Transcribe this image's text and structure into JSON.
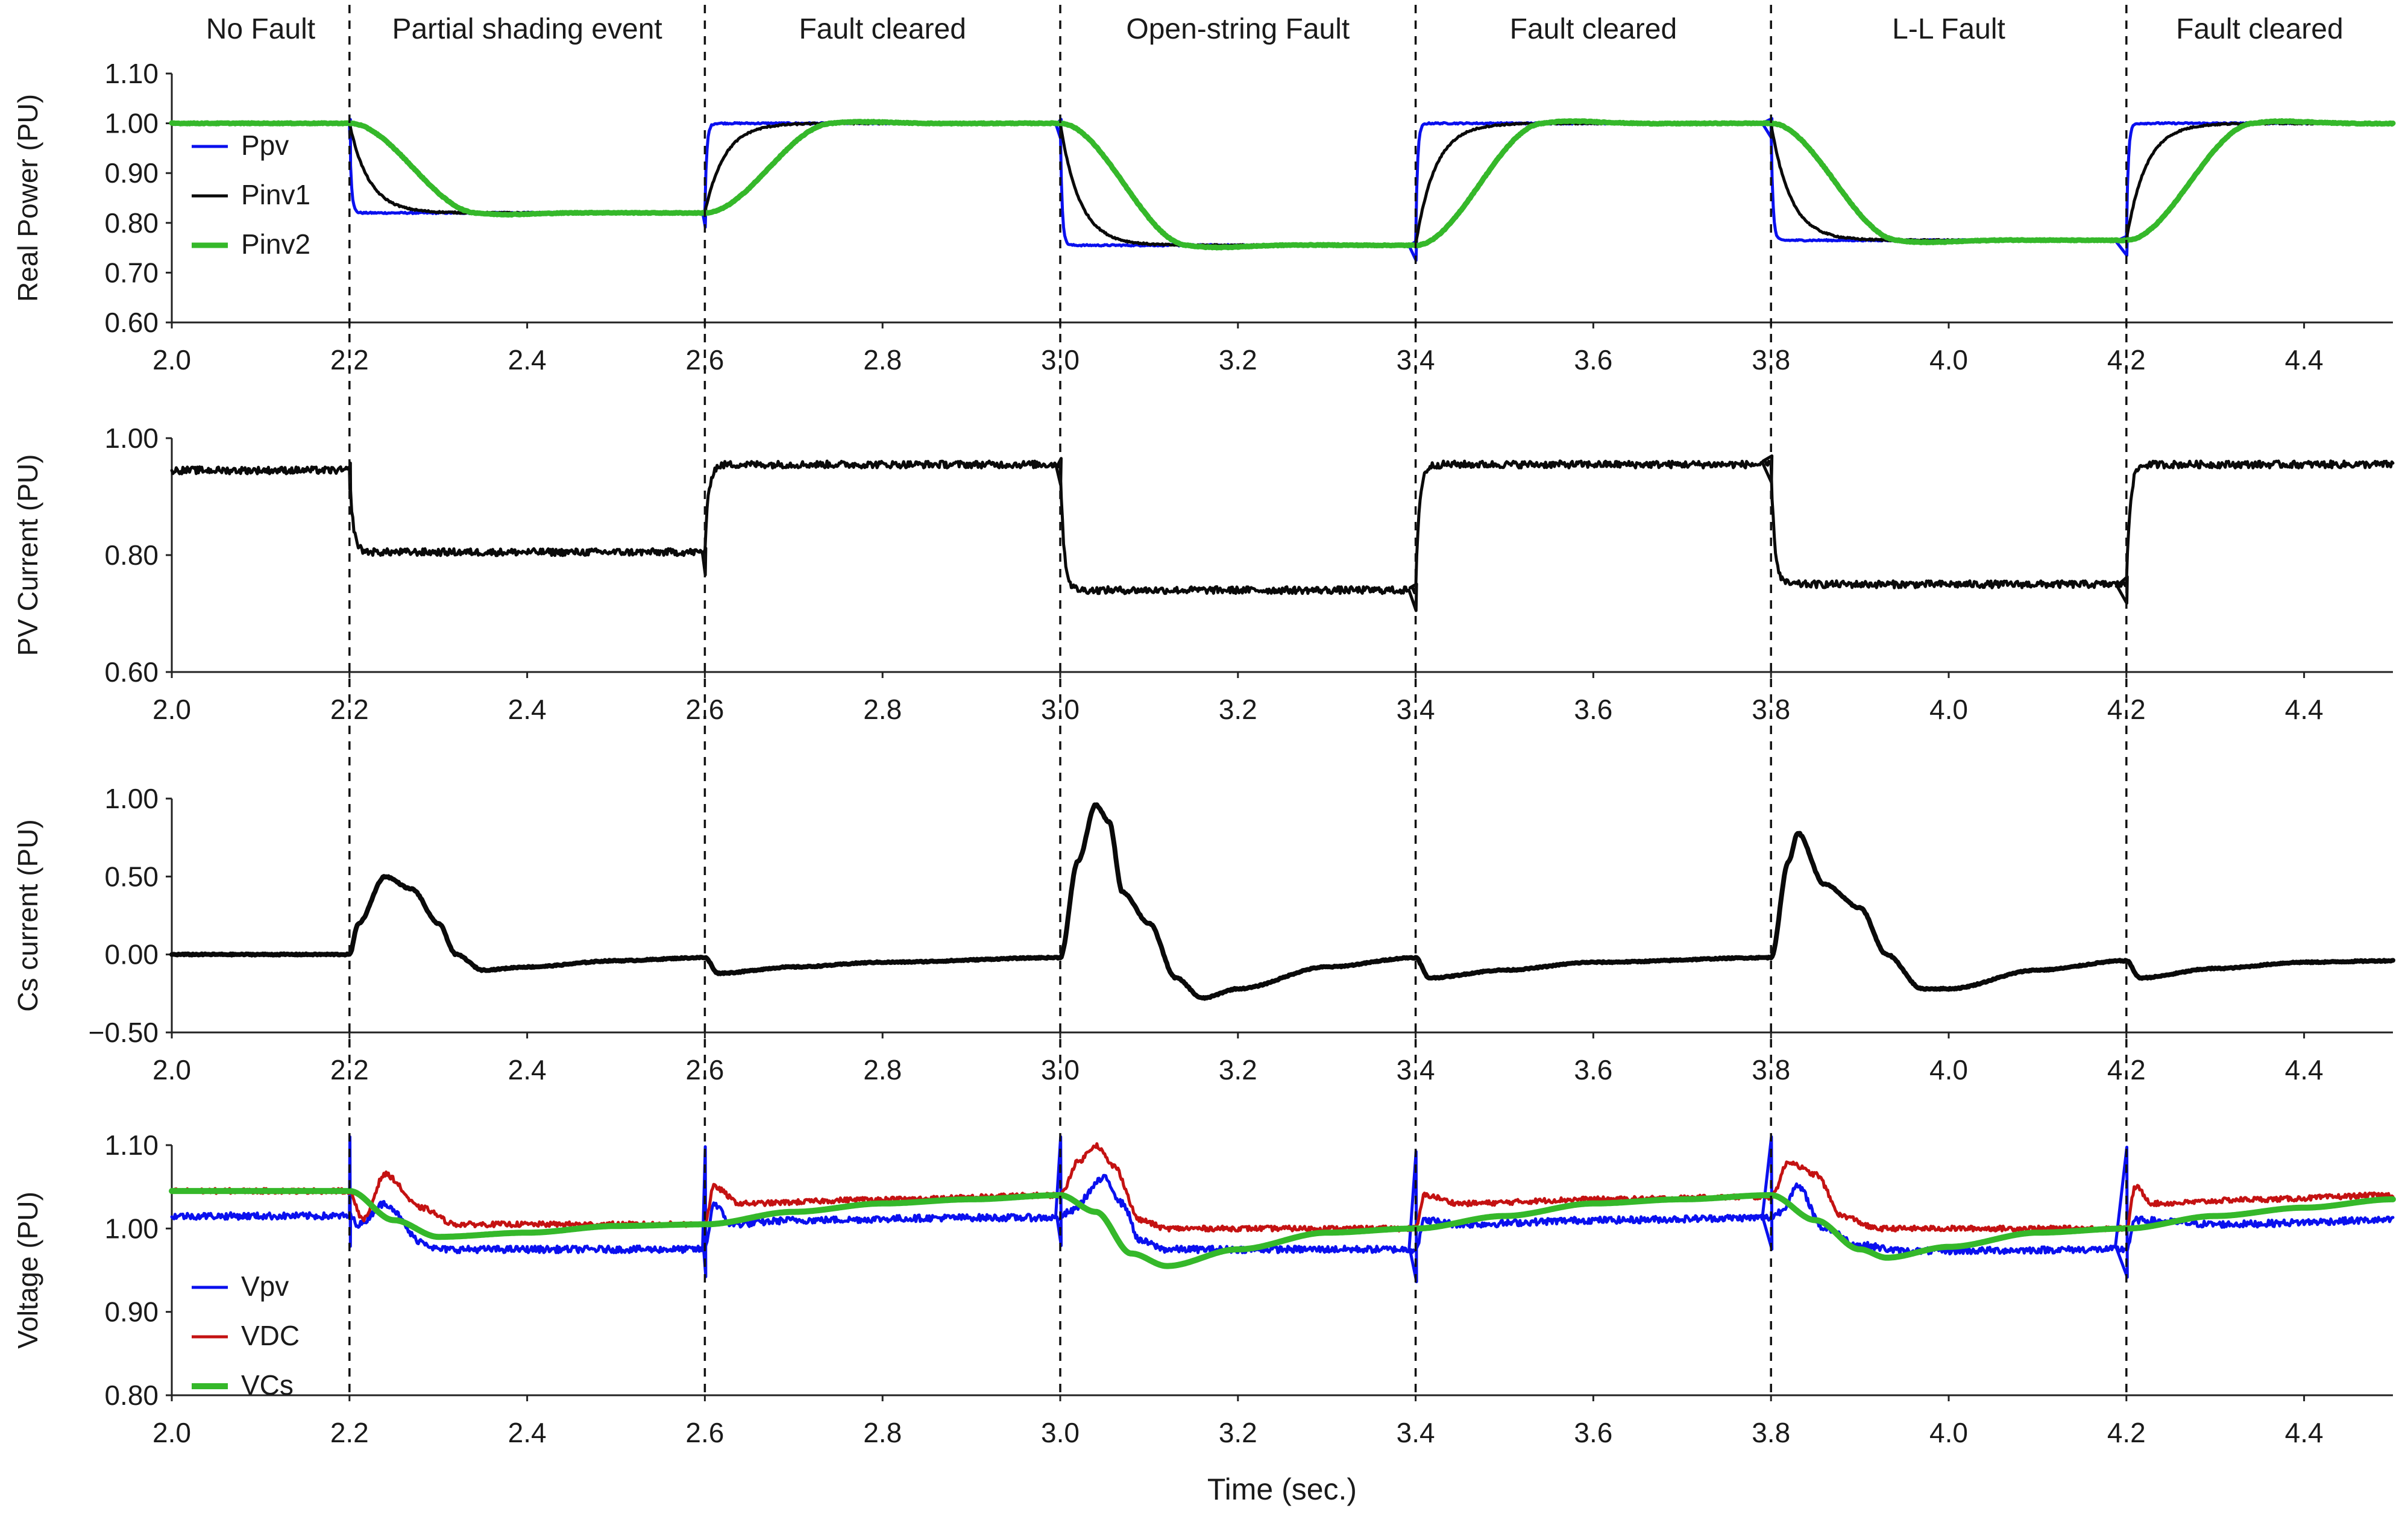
{
  "colors": {
    "blue": "#0a10ee",
    "black": "#0a0a0a",
    "green": "#35b82a",
    "red": "#c41212",
    "axis": "#222222"
  },
  "chart_data": {
    "type": "line",
    "x_axis_label": "Time (sec.)",
    "events": [
      {
        "label": "No Fault",
        "start": 2.0,
        "end": 2.2
      },
      {
        "label": "Partial shading event",
        "start": 2.2,
        "end": 2.6
      },
      {
        "label": "Fault cleared",
        "start": 2.6,
        "end": 3.0
      },
      {
        "label": "Open-string Fault",
        "start": 3.0,
        "end": 3.4
      },
      {
        "label": "Fault cleared",
        "start": 3.4,
        "end": 3.8
      },
      {
        "label": "L-L Fault",
        "start": 3.8,
        "end": 4.2
      },
      {
        "label": "Fault cleared",
        "start": 4.2,
        "end": 4.5
      }
    ],
    "event_times": [
      2.2,
      2.6,
      3.0,
      3.4,
      3.8,
      4.2
    ],
    "xlim": [
      2.0,
      4.5
    ],
    "x_ticks": [
      "2.0",
      "2.2",
      "2.4",
      "2.6",
      "2.8",
      "3.0",
      "3.2",
      "3.4",
      "3.6",
      "3.8",
      "4.0",
      "4.2",
      "4.4"
    ],
    "panels": [
      {
        "ylabel": "Real Power  (PU)",
        "ylim": [
          0.6,
          1.1
        ],
        "y_ticks": [
          "0.60",
          "0.70",
          "0.80",
          "0.90",
          "1.00",
          "1.10"
        ],
        "legend": "top-left",
        "series": [
          {
            "name": "Ppv",
            "color": "blue",
            "width": 5,
            "noise": 0.0015,
            "spike": 0.03,
            "segments": [
              [
                2.2,
                1.0,
                0.82,
                0.002
              ],
              [
                2.6,
                0.82,
                1.0,
                0.002
              ],
              [
                3.0,
                1.0,
                0.755,
                0.002
              ],
              [
                3.4,
                0.755,
                1.0,
                0.002
              ],
              [
                3.8,
                1.0,
                0.765,
                0.002
              ],
              [
                4.2,
                0.765,
                1.0,
                0.002
              ]
            ]
          },
          {
            "name": "Pinv1",
            "color": "black",
            "width": 5,
            "noise": 0.0015,
            "spike": 0,
            "segments": [
              [
                2.2,
                1.0,
                0.82,
                0.022
              ],
              [
                2.6,
                0.82,
                1.0,
                0.022
              ],
              [
                3.0,
                1.0,
                0.755,
                0.022
              ],
              [
                3.4,
                0.755,
                1.0,
                0.022
              ],
              [
                3.8,
                1.0,
                0.765,
                0.022
              ],
              [
                4.2,
                0.765,
                1.0,
                0.022
              ]
            ]
          },
          {
            "name": "Pinv2",
            "color": "green",
            "width": 9,
            "noise": 0.0008,
            "spike": 0,
            "segments": [
              [
                2.2,
                1.0,
                0.82,
                0.09
              ],
              [
                2.6,
                0.82,
                1.0,
                0.09
              ],
              [
                3.0,
                1.0,
                0.755,
                0.09
              ],
              [
                3.4,
                0.755,
                1.0,
                0.09
              ],
              [
                3.8,
                1.0,
                0.765,
                0.09
              ],
              [
                4.2,
                0.765,
                1.0,
                0.09
              ]
            ]
          }
        ]
      },
      {
        "ylabel": "PV Current  (PU)",
        "ylim": [
          0.6,
          1.0
        ],
        "y_ticks": [
          "0.60",
          "0.80",
          "1.00"
        ],
        "legend": "none",
        "series": [
          {
            "name": "PV Current",
            "color": "black",
            "width": 5,
            "noise": 0.006,
            "spike": 0.035,
            "segments": [
              [
                2.2,
                0.945,
                0.805,
                0.004
              ],
              [
                2.6,
                0.805,
                0.955,
                0.004
              ],
              [
                3.0,
                0.955,
                0.74,
                0.004
              ],
              [
                3.4,
                0.74,
                0.955,
                0.004
              ],
              [
                3.8,
                0.955,
                0.75,
                0.004
              ],
              [
                4.2,
                0.75,
                0.955,
                0.004
              ]
            ]
          }
        ]
      },
      {
        "ylabel": "Cs current  (PU)",
        "ylim": [
          -0.5,
          1.0
        ],
        "y_ticks": [
          "−0.50",
          "0.00",
          "0.50",
          "1.00"
        ],
        "legend": "none",
        "series": [
          {
            "name": "Cs current",
            "color": "black",
            "width": 8,
            "noise": 0.004,
            "spike": 0,
            "points": [
              [
                2.0,
                0.0
              ],
              [
                2.2,
                0.0
              ],
              [
                2.21,
                0.2
              ],
              [
                2.24,
                0.5
              ],
              [
                2.27,
                0.42
              ],
              [
                2.3,
                0.2
              ],
              [
                2.32,
                0.0
              ],
              [
                2.35,
                -0.1
              ],
              [
                2.4,
                -0.08
              ],
              [
                2.5,
                -0.04
              ],
              [
                2.6,
                -0.02
              ],
              [
                2.615,
                -0.12
              ],
              [
                2.7,
                -0.08
              ],
              [
                2.8,
                -0.05
              ],
              [
                3.0,
                -0.02
              ],
              [
                3.02,
                0.6
              ],
              [
                3.04,
                0.96
              ],
              [
                3.055,
                0.85
              ],
              [
                3.07,
                0.4
              ],
              [
                3.1,
                0.2
              ],
              [
                3.13,
                -0.15
              ],
              [
                3.16,
                -0.28
              ],
              [
                3.2,
                -0.22
              ],
              [
                3.3,
                -0.08
              ],
              [
                3.4,
                -0.02
              ],
              [
                3.415,
                -0.15
              ],
              [
                3.5,
                -0.1
              ],
              [
                3.6,
                -0.05
              ],
              [
                3.8,
                -0.02
              ],
              [
                3.82,
                0.6
              ],
              [
                3.83,
                0.78
              ],
              [
                3.86,
                0.45
              ],
              [
                3.9,
                0.3
              ],
              [
                3.93,
                0.0
              ],
              [
                3.97,
                -0.22
              ],
              [
                4.0,
                -0.22
              ],
              [
                4.1,
                -0.1
              ],
              [
                4.2,
                -0.04
              ],
              [
                4.215,
                -0.15
              ],
              [
                4.3,
                -0.09
              ],
              [
                4.4,
                -0.05
              ],
              [
                4.5,
                -0.04
              ]
            ]
          }
        ]
      },
      {
        "ylabel": "Voltage  (PU)",
        "ylim": [
          0.8,
          1.1
        ],
        "y_ticks": [
          "0.80",
          "0.90",
          "1.00",
          "1.10"
        ],
        "legend": "bottom-left",
        "series": [
          {
            "name": "Vpv",
            "color": "blue",
            "width": 5,
            "noise": 0.004,
            "spike": -0.12,
            "points": [
              [
                2.0,
                1.015
              ],
              [
                2.2,
                1.015
              ],
              [
                2.21,
                1.005
              ],
              [
                2.24,
                1.03
              ],
              [
                2.28,
                0.985
              ],
              [
                2.3,
                0.975
              ],
              [
                2.6,
                0.975
              ],
              [
                2.61,
                1.03
              ],
              [
                2.63,
                1.005
              ],
              [
                2.7,
                1.01
              ],
              [
                2.9,
                1.013
              ],
              [
                3.0,
                1.013
              ],
              [
                3.01,
                1.02
              ],
              [
                3.05,
                1.06
              ],
              [
                3.07,
                1.03
              ],
              [
                3.09,
                0.985
              ],
              [
                3.12,
                0.975
              ],
              [
                3.4,
                0.975
              ],
              [
                3.41,
                1.01
              ],
              [
                3.45,
                1.005
              ],
              [
                3.6,
                1.01
              ],
              [
                3.8,
                1.013
              ],
              [
                3.81,
                1.02
              ],
              [
                3.83,
                1.05
              ],
              [
                3.86,
                1.0
              ],
              [
                3.9,
                0.98
              ],
              [
                3.95,
                0.973
              ],
              [
                4.2,
                0.975
              ],
              [
                4.21,
                1.01
              ],
              [
                4.3,
                1.005
              ],
              [
                4.5,
                1.01
              ]
            ]
          },
          {
            "name": "VDC",
            "color": "red",
            "width": 5,
            "noise": 0.003,
            "spike": 0,
            "points": [
              [
                2.0,
                1.045
              ],
              [
                2.2,
                1.045
              ],
              [
                2.215,
                1.01
              ],
              [
                2.24,
                1.065
              ],
              [
                2.28,
                1.025
              ],
              [
                2.32,
                1.005
              ],
              [
                2.6,
                1.005
              ],
              [
                2.61,
                1.05
              ],
              [
                2.64,
                1.03
              ],
              [
                2.8,
                1.035
              ],
              [
                3.0,
                1.04
              ],
              [
                3.02,
                1.08
              ],
              [
                3.04,
                1.1
              ],
              [
                3.06,
                1.075
              ],
              [
                3.09,
                1.01
              ],
              [
                3.12,
                1.0
              ],
              [
                3.4,
                1.0
              ],
              [
                3.41,
                1.04
              ],
              [
                3.45,
                1.03
              ],
              [
                3.6,
                1.035
              ],
              [
                3.8,
                1.038
              ],
              [
                3.82,
                1.08
              ],
              [
                3.85,
                1.065
              ],
              [
                3.88,
                1.015
              ],
              [
                3.92,
                1.0
              ],
              [
                4.2,
                1.0
              ],
              [
                4.21,
                1.05
              ],
              [
                4.23,
                1.03
              ],
              [
                4.35,
                1.035
              ],
              [
                4.5,
                1.04
              ]
            ]
          },
          {
            "name": "VCs",
            "color": "green",
            "width": 10,
            "noise": 0,
            "spike": 0,
            "points": [
              [
                2.0,
                1.045
              ],
              [
                2.2,
                1.045
              ],
              [
                2.25,
                1.01
              ],
              [
                2.3,
                0.99
              ],
              [
                2.4,
                0.995
              ],
              [
                2.5,
                1.003
              ],
              [
                2.6,
                1.005
              ],
              [
                2.7,
                1.02
              ],
              [
                2.8,
                1.03
              ],
              [
                2.9,
                1.035
              ],
              [
                3.0,
                1.04
              ],
              [
                3.04,
                1.02
              ],
              [
                3.08,
                0.97
              ],
              [
                3.12,
                0.955
              ],
              [
                3.2,
                0.975
              ],
              [
                3.3,
                0.995
              ],
              [
                3.4,
                1.0
              ],
              [
                3.5,
                1.015
              ],
              [
                3.6,
                1.03
              ],
              [
                3.7,
                1.035
              ],
              [
                3.8,
                1.04
              ],
              [
                3.85,
                1.01
              ],
              [
                3.9,
                0.975
              ],
              [
                3.93,
                0.965
              ],
              [
                4.0,
                0.978
              ],
              [
                4.1,
                0.995
              ],
              [
                4.2,
                1.0
              ],
              [
                4.3,
                1.015
              ],
              [
                4.4,
                1.025
              ],
              [
                4.5,
                1.035
              ]
            ]
          }
        ]
      }
    ]
  }
}
